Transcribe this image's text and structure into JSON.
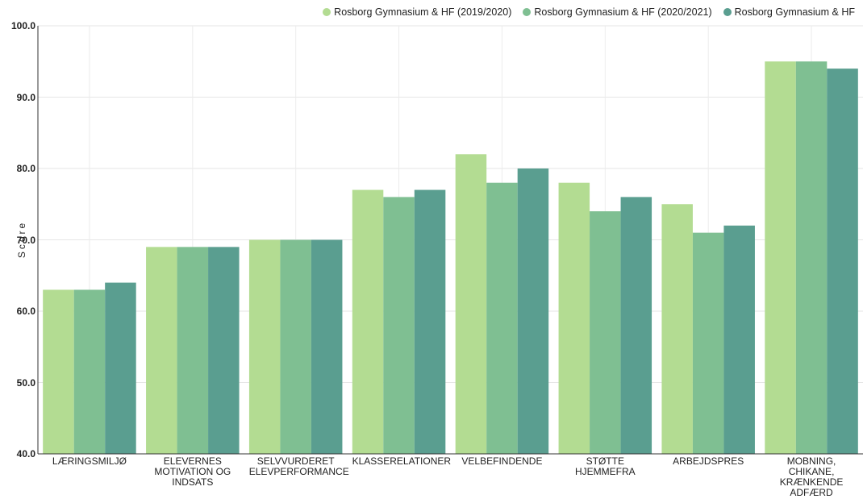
{
  "chart_data": {
    "type": "bar",
    "ylabel": "Score",
    "xlabel": "",
    "ylim": [
      40,
      100
    ],
    "yticks": [
      "40.0",
      "50.0",
      "60.0",
      "70.0",
      "80.0",
      "90.0",
      "100.0"
    ],
    "grid": true,
    "legend_position": "top-right",
    "categories": [
      "LÆRINGSMILJØ",
      "ELEVERNES MOTIVATION OG INDSATS",
      "SELVVURDERET ELEVPERFORMANCE",
      "KLASSERELATIONER",
      "VELBEFINDENDE",
      "STØTTE HJEMMEFRA",
      "ARBEJDSPRES",
      "MOBNING, CHIKANE, KRÆNKENDE ADFÆRD"
    ],
    "series": [
      {
        "name": "Rosborg Gymnasium & HF (2019/2020)",
        "color": "#b3dc92",
        "values": [
          63,
          69,
          70,
          77,
          82,
          78,
          75,
          95
        ]
      },
      {
        "name": "Rosborg Gymnasium & HF (2020/2021)",
        "color": "#7fbf92",
        "values": [
          63,
          69,
          70,
          76,
          78,
          74,
          71,
          95
        ]
      },
      {
        "name": "Rosborg Gymnasium & HF",
        "color": "#5a9e90",
        "values": [
          64,
          69,
          70,
          77,
          80,
          76,
          72,
          94
        ]
      }
    ]
  }
}
